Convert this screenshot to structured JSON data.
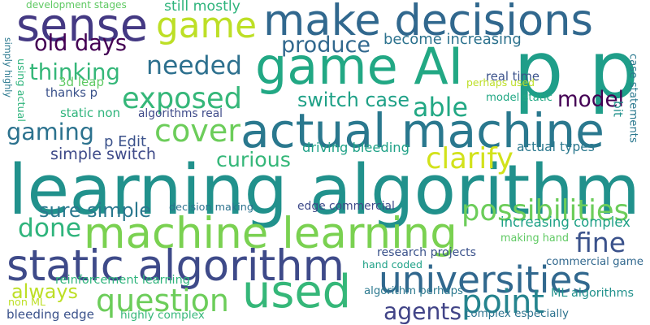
{
  "words": [
    {
      "id": "learning-algorithm",
      "text": "learning algorithm",
      "color": "#21918c"
    },
    {
      "id": "machine-learning",
      "text": "machine learning",
      "color": "#7ad151"
    },
    {
      "id": "game-ai",
      "text": "game AI",
      "color": "#22a884"
    },
    {
      "id": "actual-machine",
      "text": "actual machine",
      "color": "#2a788e"
    },
    {
      "id": "used",
      "text": "used",
      "color": "#35b779"
    },
    {
      "id": "p-p",
      "text": "p p",
      "color": "#1f9e89"
    },
    {
      "id": "make-decisions",
      "text": "make decisions",
      "color": "#31688e"
    },
    {
      "id": "static-algorithm",
      "text": "static algorithm",
      "color": "#3e4a89"
    },
    {
      "id": "game",
      "text": "game",
      "color": "#bddf26"
    },
    {
      "id": "sense",
      "text": "sense",
      "color": "#443983"
    },
    {
      "id": "universities",
      "text": "universities",
      "color": "#31688e"
    },
    {
      "id": "question",
      "text": "question",
      "color": "#6ccd5a"
    },
    {
      "id": "possibilities",
      "text": "possibilities",
      "color": "#6ccd5a"
    },
    {
      "id": "exposed",
      "text": "exposed",
      "color": "#35b779"
    },
    {
      "id": "cover",
      "text": "cover",
      "color": "#6ccd5a"
    },
    {
      "id": "gaming",
      "text": "gaming",
      "color": "#2c728e"
    },
    {
      "id": "point",
      "text": "point",
      "color": "#25848e"
    },
    {
      "id": "fine",
      "text": "fine",
      "color": "#3b528b"
    },
    {
      "id": "done",
      "text": "done",
      "color": "#2fb47c"
    },
    {
      "id": "needed",
      "text": "needed",
      "color": "#2d708e"
    },
    {
      "id": "old-days",
      "text": "old days",
      "color": "#440154"
    },
    {
      "id": "thinking",
      "text": "thinking",
      "color": "#35b779"
    },
    {
      "id": "able",
      "text": "able",
      "color": "#22a884"
    },
    {
      "id": "model",
      "text": "model",
      "color": "#440154"
    },
    {
      "id": "produce",
      "text": "produce",
      "color": "#31688e"
    },
    {
      "id": "switch-case",
      "text": "switch case",
      "color": "#1fa187"
    },
    {
      "id": "clarify",
      "text": "clarify",
      "color": "#d2e21b"
    },
    {
      "id": "curious",
      "text": "curious",
      "color": "#35b779"
    },
    {
      "id": "sure-simple",
      "text": "sure simple",
      "color": "#2a788e"
    },
    {
      "id": "simple-switch",
      "text": "simple switch",
      "color": "#3e4a89"
    },
    {
      "id": "agents",
      "text": "agents",
      "color": "#414487"
    },
    {
      "id": "always",
      "text": "always",
      "color": "#bddf26"
    },
    {
      "id": "bit",
      "text": "bit",
      "color": "#21918c"
    },
    {
      "id": "case-statements",
      "text": "case statements",
      "color": "#2a788e"
    },
    {
      "id": "increasing-complex",
      "text": "increasing complex",
      "color": "#1fa187"
    },
    {
      "id": "become-increasing",
      "text": "become increasing",
      "color": "#2c728e"
    },
    {
      "id": "development-stages",
      "text": "development stages",
      "color": "#5ec962"
    },
    {
      "id": "still-mostly",
      "text": "still mostly",
      "color": "#2fb47c"
    },
    {
      "id": "simply-highly",
      "text": "simply highly",
      "color": "#2a788e"
    },
    {
      "id": "using-actual",
      "text": "using actual",
      "color": "#2fb47c"
    },
    {
      "id": "3d-leap",
      "text": "3d leap",
      "color": "#5ec962"
    },
    {
      "id": "thanks-p",
      "text": "thanks p",
      "color": "#3b528b"
    },
    {
      "id": "static-non",
      "text": "static non",
      "color": "#2fb47c"
    },
    {
      "id": "algorithms-real",
      "text": "algorithms real",
      "color": "#3e4a89"
    },
    {
      "id": "p-edit",
      "text": "p Edit",
      "color": "#3b528b"
    },
    {
      "id": "real-time",
      "text": "real time",
      "color": "#3b528b"
    },
    {
      "id": "perhaps-used",
      "text": "perhaps used",
      "color": "#bddf26"
    },
    {
      "id": "model-static",
      "text": "model static",
      "color": "#22a884"
    },
    {
      "id": "driving-bleeding",
      "text": "driving bleeding",
      "color": "#1fa187"
    },
    {
      "id": "actual-types",
      "text": "actual types",
      "color": "#2a788e"
    },
    {
      "id": "decision-making",
      "text": "decision making",
      "color": "#2c728e"
    },
    {
      "id": "edge-commercial",
      "text": "edge commercial",
      "color": "#3e4a89"
    },
    {
      "id": "making-hand",
      "text": "making hand",
      "color": "#5ec962"
    },
    {
      "id": "research-projects",
      "text": "research projects",
      "color": "#3b528b"
    },
    {
      "id": "hand-coded",
      "text": "hand coded",
      "color": "#1fa187"
    },
    {
      "id": "commercial-game",
      "text": "commercial game",
      "color": "#31688e"
    },
    {
      "id": "reinforcement-learning",
      "text": "reinforcement learning",
      "color": "#2fb47c"
    },
    {
      "id": "ml-algorithms",
      "text": "ML algorithms",
      "color": "#21918c"
    },
    {
      "id": "algorithm-perhaps",
      "text": "algorithm perhaps",
      "color": "#2a788e"
    },
    {
      "id": "non-ml",
      "text": "non ML",
      "color": "#bddf26"
    },
    {
      "id": "bleeding-edge",
      "text": "bleeding edge",
      "color": "#3b528b"
    },
    {
      "id": "highly-complex",
      "text": "highly complex",
      "color": "#35b779"
    },
    {
      "id": "complex-especially",
      "text": "complex especially",
      "color": "#2c728e"
    }
  ]
}
